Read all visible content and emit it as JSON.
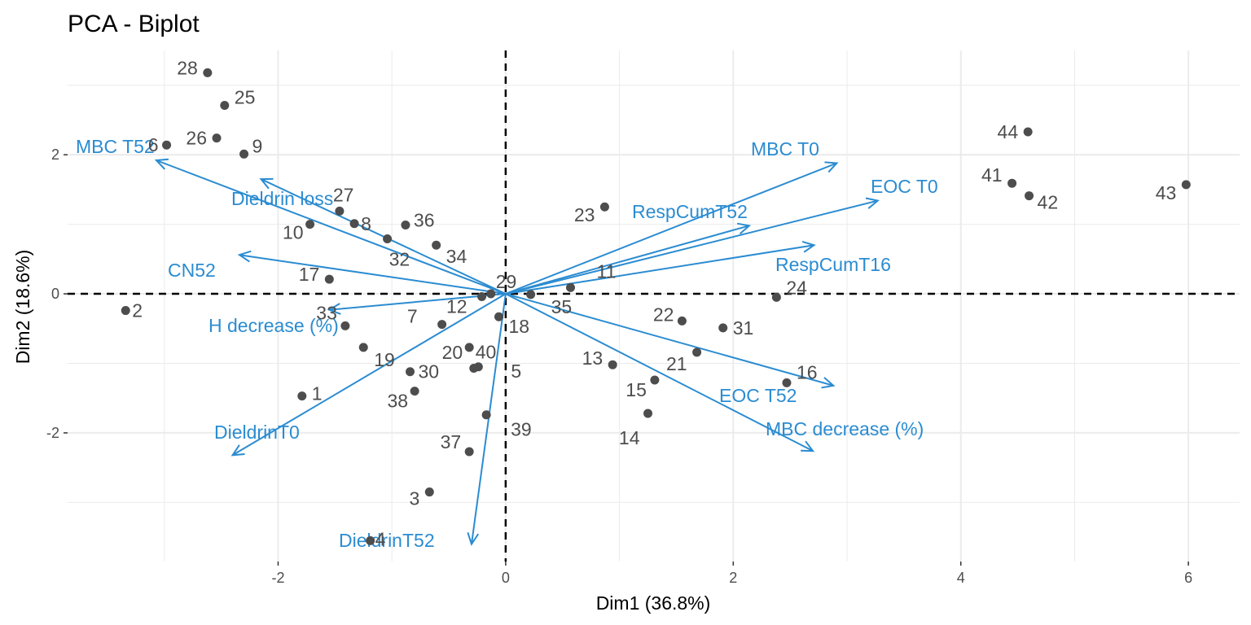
{
  "chart_data": {
    "type": "scatter",
    "subtype": "pca-biplot",
    "title": "PCA - Biplot",
    "xlabel": "Dim1 (36.8%)",
    "ylabel": "Dim2 (18.6%)",
    "xlim": [
      -3.85,
      6.45
    ],
    "ylim": [
      -3.85,
      3.5
    ],
    "x_ticks": [
      -2,
      0,
      2,
      4,
      6
    ],
    "y_ticks": [
      -2,
      0,
      2
    ],
    "x_tick_labels": [
      "-2",
      "0",
      "2",
      "4",
      "6"
    ],
    "y_tick_labels": [
      "-2",
      "0",
      "2"
    ],
    "grid": true,
    "reference_lines": {
      "x": 0,
      "y": 0,
      "style": "dashed"
    },
    "colors": {
      "points": "#4d4d4d",
      "variables": "#2b8cd1",
      "grid": "#ebebeb"
    },
    "individuals": [
      {
        "id": "1",
        "x": -1.79,
        "y": -1.47
      },
      {
        "id": "2",
        "x": -3.34,
        "y": -0.24
      },
      {
        "id": "3",
        "x": -0.67,
        "y": -2.85
      },
      {
        "id": "4",
        "x": -1.19,
        "y": -3.55
      },
      {
        "id": "5",
        "x": -0.24,
        "y": -1.05
      },
      {
        "id": "6",
        "x": -2.98,
        "y": 2.14
      },
      {
        "id": "7",
        "x": -0.56,
        "y": -0.44
      },
      {
        "id": "8",
        "x": -1.33,
        "y": 1.01
      },
      {
        "id": "9",
        "x": -2.3,
        "y": 2.01
      },
      {
        "id": "10",
        "x": -1.72,
        "y": 1.0
      },
      {
        "id": "11",
        "x": 0.57,
        "y": 0.09
      },
      {
        "id": "12",
        "x": -0.21,
        "y": -0.04
      },
      {
        "id": "13",
        "x": 0.94,
        "y": -1.02
      },
      {
        "id": "14",
        "x": 1.25,
        "y": -1.72
      },
      {
        "id": "15",
        "x": 1.31,
        "y": -1.24
      },
      {
        "id": "16",
        "x": 2.47,
        "y": -1.28
      },
      {
        "id": "17",
        "x": -1.55,
        "y": 0.21
      },
      {
        "id": "18",
        "x": -0.06,
        "y": -0.33
      },
      {
        "id": "19",
        "x": -1.25,
        "y": -0.77
      },
      {
        "id": "20",
        "x": -0.32,
        "y": -0.77
      },
      {
        "id": "21",
        "x": 1.68,
        "y": -0.84
      },
      {
        "id": "22",
        "x": 1.55,
        "y": -0.39
      },
      {
        "id": "23",
        "x": 0.87,
        "y": 1.25
      },
      {
        "id": "24",
        "x": 2.38,
        "y": -0.05
      },
      {
        "id": "25",
        "x": -2.47,
        "y": 2.71
      },
      {
        "id": "26",
        "x": -2.54,
        "y": 2.24
      },
      {
        "id": "27",
        "x": -1.46,
        "y": 1.19
      },
      {
        "id": "28",
        "x": -2.62,
        "y": 3.18
      },
      {
        "id": "29",
        "x": -0.13,
        "y": 0.0
      },
      {
        "id": "30",
        "x": -0.84,
        "y": -1.12
      },
      {
        "id": "31",
        "x": 1.91,
        "y": -0.49
      },
      {
        "id": "32",
        "x": -1.04,
        "y": 0.79
      },
      {
        "id": "33",
        "x": -1.41,
        "y": -0.46
      },
      {
        "id": "34",
        "x": -0.61,
        "y": 0.7
      },
      {
        "id": "35",
        "x": 0.22,
        "y": -0.01
      },
      {
        "id": "36",
        "x": -0.88,
        "y": 0.99
      },
      {
        "id": "37",
        "x": -0.32,
        "y": -2.27
      },
      {
        "id": "38",
        "x": -0.8,
        "y": -1.4
      },
      {
        "id": "39",
        "x": -0.17,
        "y": -1.74
      },
      {
        "id": "40",
        "x": -0.28,
        "y": -1.07
      },
      {
        "id": "41",
        "x": 4.45,
        "y": 1.59
      },
      {
        "id": "42",
        "x": 4.6,
        "y": 1.41
      },
      {
        "id": "43",
        "x": 5.98,
        "y": 1.57
      },
      {
        "id": "44",
        "x": 4.59,
        "y": 2.33
      }
    ],
    "variables": [
      {
        "name": "MBC T52",
        "x": -3.07,
        "y": 1.92
      },
      {
        "name": "Dieldrin loss",
        "x": -2.15,
        "y": 1.65
      },
      {
        "name": "CN52",
        "x": -2.34,
        "y": 0.56
      },
      {
        "name": "H decrease (%)",
        "x": -1.55,
        "y": -0.23
      },
      {
        "name": "DieldrinT0",
        "x": -2.4,
        "y": -2.32
      },
      {
        "name": "DieldrinT52",
        "x": -0.3,
        "y": -3.6
      },
      {
        "name": "MBC T0",
        "x": 2.91,
        "y": 1.88
      },
      {
        "name": "EOC T0",
        "x": 3.27,
        "y": 1.34
      },
      {
        "name": "RespCumT52",
        "x": 2.14,
        "y": 0.98
      },
      {
        "name": "RespCumT16",
        "x": 2.71,
        "y": 0.7
      },
      {
        "name": "EOC T52",
        "x": 2.88,
        "y": -1.32
      },
      {
        "name": "MBC decrease (%)",
        "x": 2.7,
        "y": -2.26
      }
    ]
  }
}
